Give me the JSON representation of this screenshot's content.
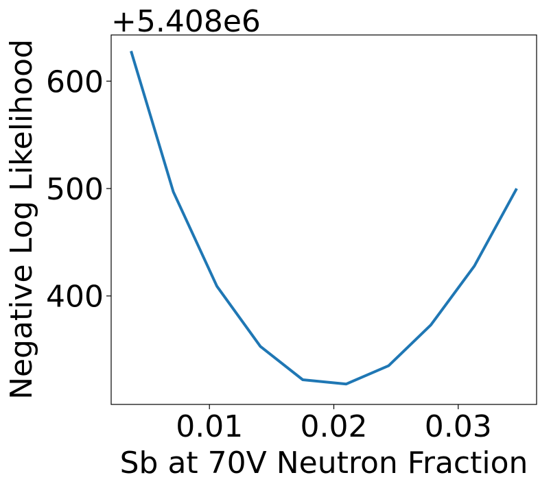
{
  "chart_data": {
    "type": "line",
    "title": "",
    "xlabel": "Sb at 70V Neutron Fraction",
    "ylabel": "Negative Log Likelihood",
    "y_offset_text": "+5.408e6",
    "xlim": [
      0.0021,
      0.0363
    ],
    "ylim": [
      299,
      643
    ],
    "xticks": [
      0.01,
      0.02,
      0.03
    ],
    "xtick_labels": [
      "0.01",
      "0.02",
      "0.03"
    ],
    "yticks": [
      400,
      500,
      600
    ],
    "ytick_labels": [
      "400",
      "500",
      "600"
    ],
    "grid": false,
    "series": [
      {
        "color": "#1f77b4",
        "x": [
          0.0037,
          0.0071,
          0.0106,
          0.0141,
          0.0175,
          0.021,
          0.0244,
          0.0278,
          0.0313,
          0.0347
        ],
        "y": [
          628,
          497,
          409,
          353,
          322,
          318,
          335,
          373,
          428,
          500
        ]
      }
    ]
  }
}
